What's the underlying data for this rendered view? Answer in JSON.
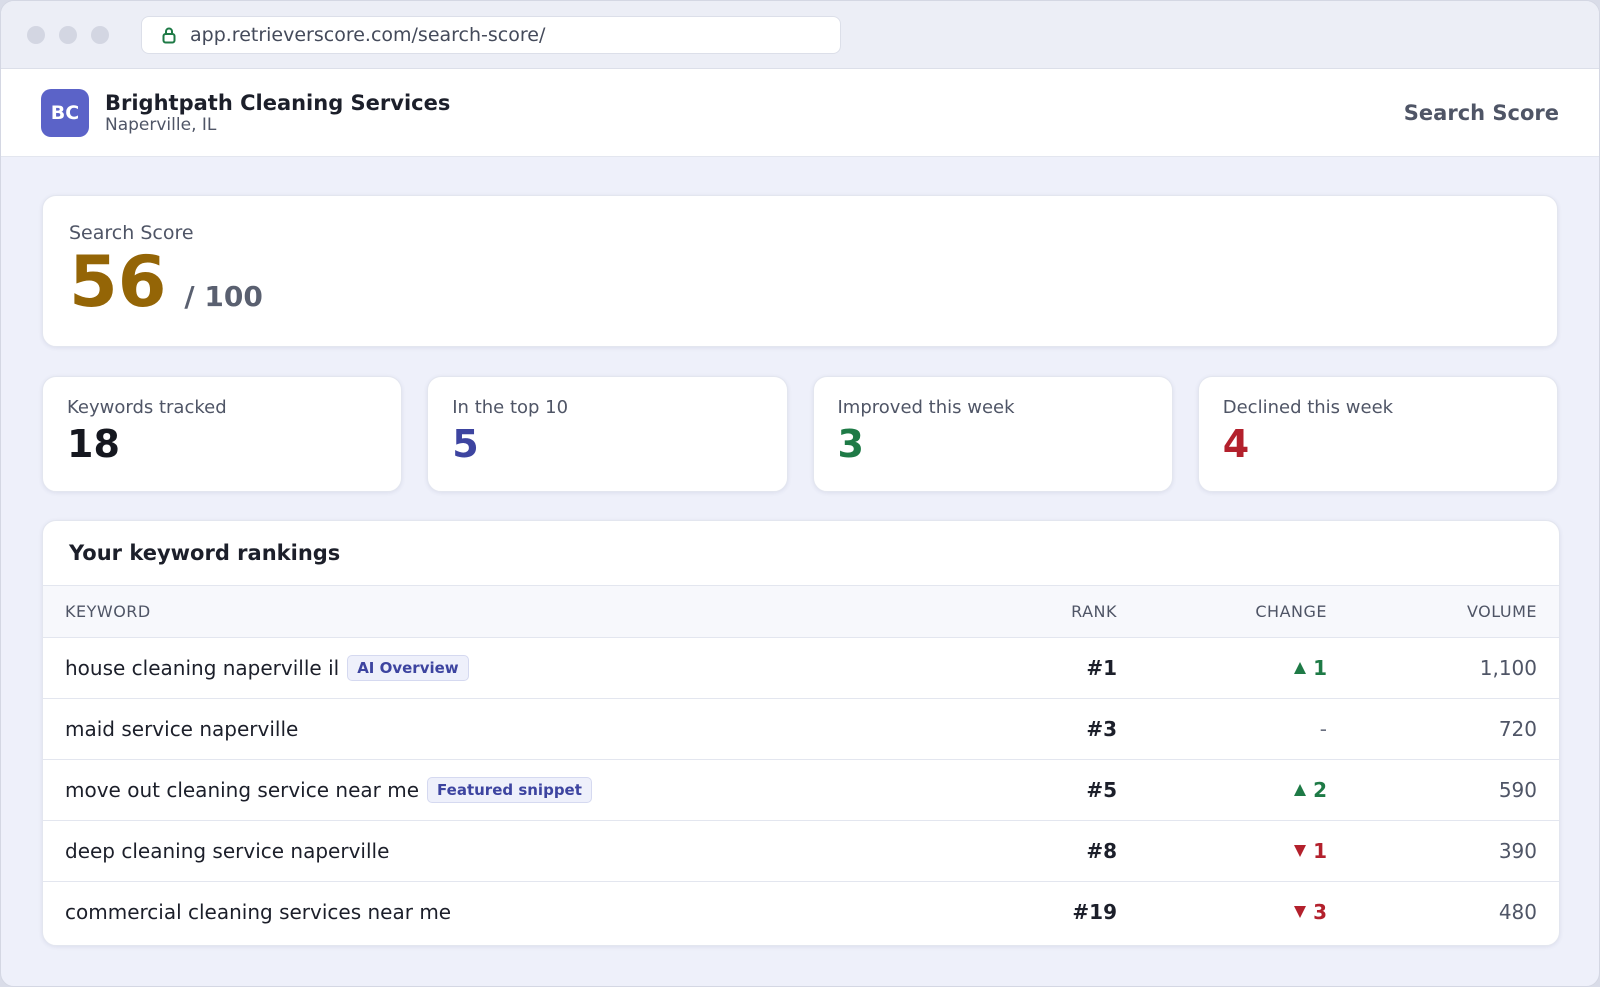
{
  "browser": {
    "url": "app.retrieverscore.com/search-score/"
  },
  "header": {
    "logo": "BC",
    "business": "Brightpath Cleaning Services",
    "location": "Naperville, IL",
    "page_title": "Search Score"
  },
  "score": {
    "label": "Search Score",
    "value": "56",
    "max": "/ 100"
  },
  "stats": [
    {
      "label": "Keywords tracked",
      "value": "18",
      "color": "#15171f"
    },
    {
      "label": "In the top 10",
      "value": "5",
      "color": "#3d44a0"
    },
    {
      "label": "Improved this week",
      "value": "3",
      "color": "#1e7a46"
    },
    {
      "label": "Declined this week",
      "value": "4",
      "color": "#b3202c"
    }
  ],
  "rankings": {
    "title": "Your keyword rankings",
    "columns": [
      "KEYWORD",
      "RANK",
      "CHANGE",
      "VOLUME"
    ],
    "rows": [
      {
        "keyword": "house cleaning naperville il",
        "badge": "AI Overview",
        "rank": "#1",
        "direction": "up",
        "change": "1",
        "volume": "1,100"
      },
      {
        "keyword": "maid service naperville",
        "rank": "#3",
        "direction": "flat",
        "change": "-",
        "volume": "720"
      },
      {
        "keyword": "move out cleaning service near me",
        "badge": "Featured snippet",
        "rank": "#5",
        "direction": "up",
        "change": "2",
        "volume": "590"
      },
      {
        "keyword": "deep cleaning service naperville",
        "rank": "#8",
        "direction": "down",
        "change": "1",
        "volume": "390"
      },
      {
        "keyword": "commercial cleaning services near me",
        "rank": "#19",
        "direction": "down",
        "change": "3",
        "volume": "480"
      }
    ]
  }
}
